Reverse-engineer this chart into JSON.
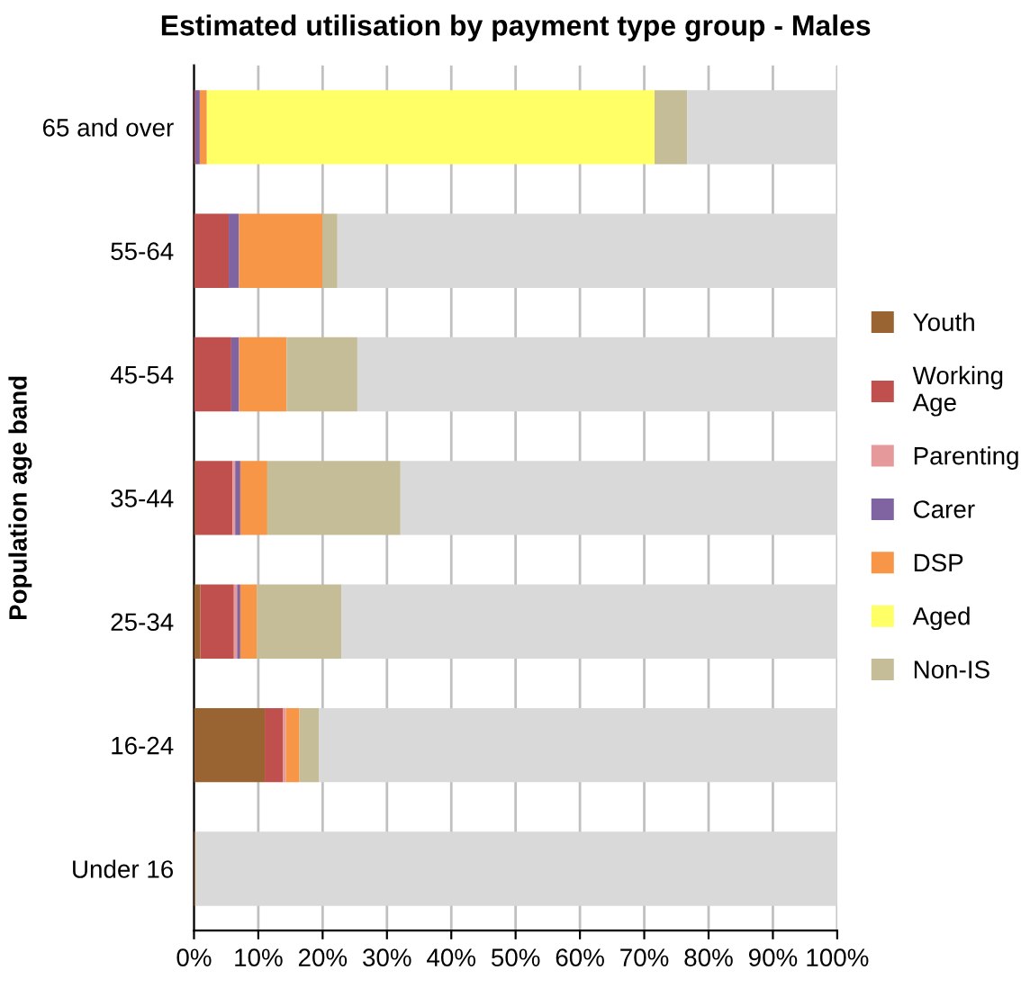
{
  "chart_data": {
    "type": "bar",
    "orientation": "horizontal",
    "stacked": true,
    "title": "Estimated utilisation by payment type group - Males",
    "ylabel": "Population age band",
    "categories": [
      "65 and over",
      "55-64",
      "45-54",
      "35-44",
      "25-34",
      "16-24",
      "Under 16"
    ],
    "series": [
      {
        "name": "Youth",
        "color": "#9a6432",
        "values": [
          0,
          0,
          0,
          0.2,
          1.0,
          11.0,
          0.2
        ]
      },
      {
        "name": "Working Age",
        "color": "#c0504d",
        "values": [
          0.2,
          5.4,
          5.8,
          5.8,
          5.2,
          2.8,
          0
        ]
      },
      {
        "name": "Parenting",
        "color": "#e6999a",
        "values": [
          0,
          0,
          0,
          0.4,
          0.5,
          0.5,
          0
        ]
      },
      {
        "name": "Carer",
        "color": "#8064a2",
        "values": [
          0.7,
          1.6,
          1.2,
          0.8,
          0.5,
          0,
          0
        ]
      },
      {
        "name": "DSP",
        "color": "#f79646",
        "values": [
          1.1,
          13.0,
          7.4,
          4.2,
          2.6,
          2.1,
          0
        ]
      },
      {
        "name": "Aged",
        "color": "#ffff66",
        "values": [
          69.6,
          0,
          0,
          0,
          0,
          0,
          0
        ]
      },
      {
        "name": "Non-IS",
        "color": "#c4bd97",
        "values": [
          5.1,
          2.3,
          11.0,
          20.7,
          13.1,
          3.0,
          0
        ]
      },
      {
        "color": "#d9d9d9",
        "values": [
          23.3,
          77.7,
          74.6,
          67.9,
          77.1,
          80.6,
          99.8
        ]
      }
    ],
    "xlim": [
      0,
      100
    ],
    "xticks": [
      {
        "value": 0,
        "label": "0%"
      },
      {
        "value": 10,
        "label": "10%"
      },
      {
        "value": 20,
        "label": "20%"
      },
      {
        "value": 30,
        "label": "30%"
      },
      {
        "value": 40,
        "label": "40%"
      },
      {
        "value": 50,
        "label": "50%"
      },
      {
        "value": 60,
        "label": "60%"
      },
      {
        "value": 70,
        "label": "70%"
      },
      {
        "value": 80,
        "label": "80%"
      },
      {
        "value": 90,
        "label": "90%"
      },
      {
        "value": 100,
        "label": "100%"
      }
    ],
    "grid": "x",
    "legend": "right"
  }
}
